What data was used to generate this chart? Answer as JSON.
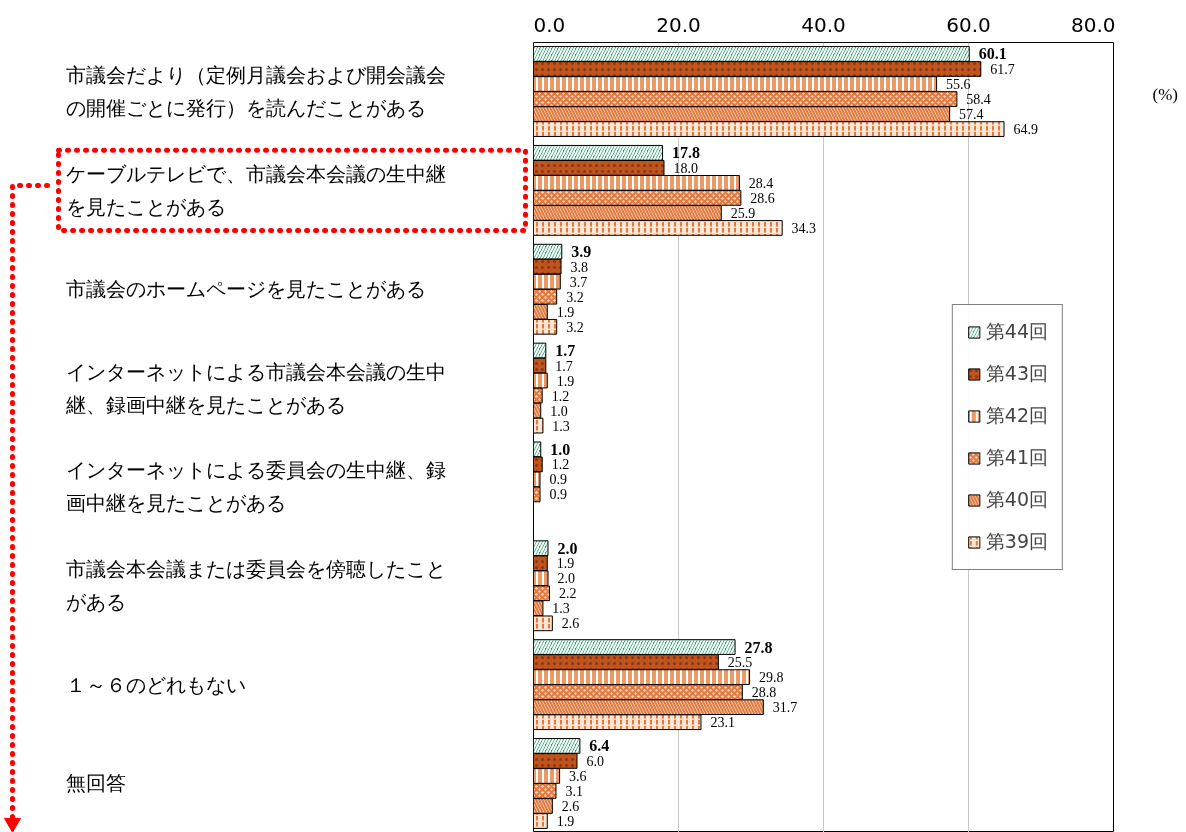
{
  "chart_data": {
    "type": "bar",
    "orientation": "horizontal",
    "xlabel": "(%)",
    "categories": [
      "市議会だより（定例月議会および開会議会の開催ごとに発行）を読んだことがある",
      "ケーブルテレビで、市議会本会議の生中継を見たことがある",
      "市議会のホームページを見たことがある",
      "インターネットによる市議会本会議の生中継、録画中継を見たことがある",
      "インターネットによる委員会の生中継、録画中継を見たことがある",
      "市議会本会議または委員会を傍聴したことがある",
      "１～６のどれもない",
      "無回答"
    ],
    "series": [
      {
        "name": "第44回",
        "color": "#1f9a6a",
        "values": [
          60.1,
          17.8,
          3.9,
          1.7,
          1.0,
          2.0,
          27.8,
          6.4
        ],
        "value_labels": [
          "60.1",
          "17.8",
          "3.9",
          "1.7",
          "1.0",
          "2.0",
          "27.8",
          "6.4"
        ]
      },
      {
        "name": "第43回",
        "color": "#c0541e",
        "values": [
          61.7,
          18.0,
          3.8,
          1.7,
          1.2,
          1.9,
          25.5,
          6.0
        ],
        "value_labels": [
          "61.7",
          "18.0",
          "3.8",
          "1.7",
          "1.2",
          "1.9",
          "25.5",
          "6.0"
        ]
      },
      {
        "name": "第42回",
        "color": "#eb9a66",
        "values": [
          55.6,
          28.4,
          3.7,
          1.9,
          0.9,
          2.0,
          29.8,
          3.6
        ],
        "value_labels": [
          "55.6",
          "28.4",
          "3.7",
          "1.9",
          "0.9",
          "2.0",
          "29.8",
          "3.6"
        ]
      },
      {
        "name": "第41回",
        "color": "#f7d2b8",
        "values": [
          58.4,
          28.6,
          3.2,
          1.2,
          0.9,
          2.2,
          28.8,
          3.1
        ],
        "value_labels": [
          "58.4",
          "28.6",
          "3.2",
          "1.2",
          "0.9",
          "2.2",
          "28.8",
          "3.1"
        ]
      },
      {
        "name": "第40回",
        "color": "#f9dcc6",
        "values": [
          57.4,
          25.9,
          1.9,
          1.0,
          null,
          1.3,
          31.7,
          2.6
        ],
        "value_labels": [
          "57.4",
          "25.9",
          "1.9",
          "1.0",
          null,
          "1.3",
          "31.7",
          "2.6"
        ]
      },
      {
        "name": "第39回",
        "color": "#fbe6d6",
        "values": [
          64.9,
          34.3,
          3.2,
          1.3,
          null,
          2.6,
          23.1,
          1.9
        ],
        "value_labels": [
          "64.9",
          "34.3",
          "3.2",
          "1.3",
          null,
          "2.6",
          "23.1",
          "1.9"
        ]
      }
    ],
    "xlim": [
      0,
      80
    ],
    "xticks": [
      {
        "value": 0,
        "label": "0.0"
      },
      {
        "value": 20,
        "label": "20.0"
      },
      {
        "value": 40,
        "label": "40.0"
      },
      {
        "value": 60,
        "label": "60.0"
      },
      {
        "value": 80,
        "label": "80.0"
      }
    ],
    "grid": "x",
    "legend": "right"
  }
}
